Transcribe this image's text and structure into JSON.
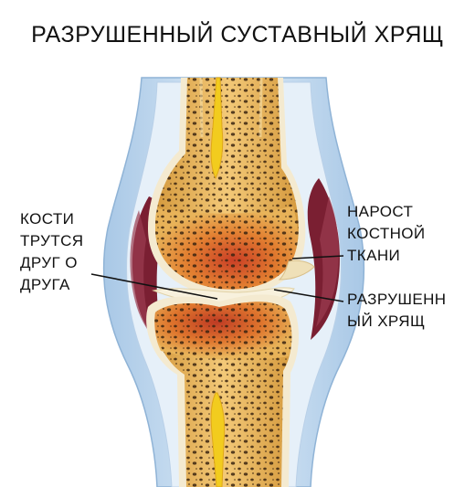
{
  "title": "РАЗРУШЕННЫЙ СУСТАВНЫЙ ХРЯЩ",
  "labels": {
    "bones_rub": [
      "КОСТИ",
      "ТРУТСЯ",
      "ДРУГ О",
      "ДРУГА"
    ],
    "bone_growth": [
      "НАРОСТ",
      "КОСТНОЙ",
      "ТКАНИ"
    ],
    "damaged_cartilage": [
      "РАЗРУШЕНН",
      "ЫЙ ХРЯЩ"
    ]
  },
  "colors": {
    "skin": "#bcd6ec",
    "bone_shaft": "#e5b55c",
    "marrow": "#f2cc1e",
    "inflamed": "#c6301d",
    "capsule": "#7a1f32",
    "cartilage": "#f4ead0"
  }
}
